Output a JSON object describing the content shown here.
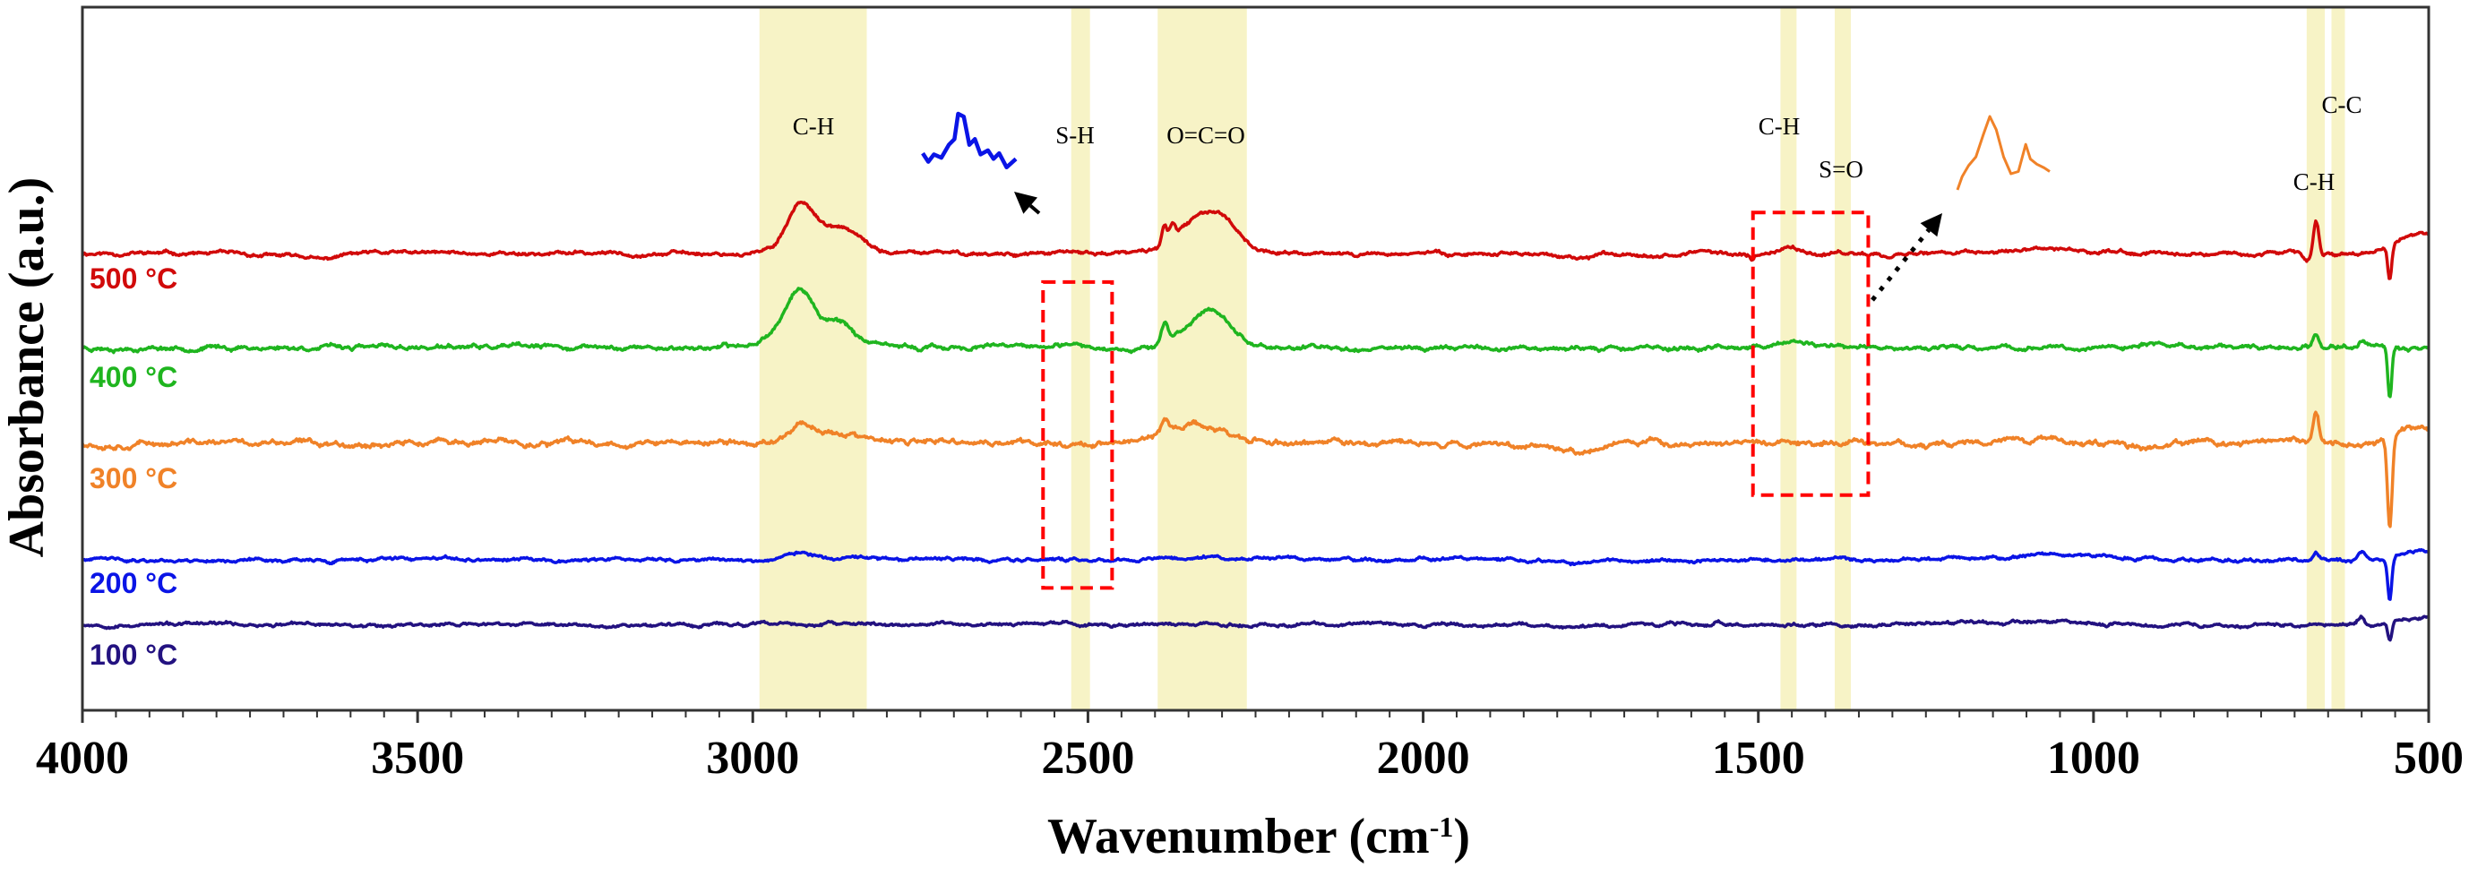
{
  "chart_data": {
    "type": "line",
    "title": "",
    "xlabel": "Wavenumber (cm",
    "xlabel_sup": "-1",
    "xlabel_close": ")",
    "ylabel": "Absorbance (a.u.)",
    "xlim": [
      4000,
      500
    ],
    "x_reversed": true,
    "ylim": [
      0,
      100
    ],
    "x_ticks": [
      4000,
      3500,
      3000,
      2500,
      2000,
      1500,
      1000,
      500
    ],
    "x_tick_labels": [
      "4000",
      "3500",
      "3000",
      "2500",
      "2000",
      "1500",
      "1000",
      "500"
    ],
    "x_minor_step": 50,
    "y_ticks_shown": false,
    "grid": false,
    "legend": "inline-left",
    "highlight_bands": [
      {
        "label": "C-H",
        "from": 2990,
        "to": 2830
      },
      {
        "label": "S-H",
        "from": 2525,
        "to": 2497
      },
      {
        "label": "O=C=O",
        "from": 2396,
        "to": 2263
      },
      {
        "label": "C-H",
        "from": 1467,
        "to": 1443
      },
      {
        "label": "S=O",
        "from": 1386,
        "to": 1362
      },
      {
        "label": "C-H",
        "from": 682,
        "to": 655
      },
      {
        "label": "C-C",
        "from": 645,
        "to": 625
      }
    ],
    "band_color": "#f7f3c6",
    "annotation_boxes": [
      {
        "name": "sh-region",
        "from": 2567,
        "to": 2464,
        "y_top": 60.9,
        "y_bottom": 17.4,
        "inset_series": "200 °C"
      },
      {
        "name": "ch-so-region",
        "from": 1508,
        "to": 1336,
        "y_top": 70.8,
        "y_bottom": 30.6,
        "inset_series": "300 °C"
      }
    ],
    "annotation_color": "#ff0000",
    "series": [
      {
        "name": "500 °C",
        "label": "500 °C",
        "color": "#d10a0a",
        "baseline": 65.0,
        "seed": 11,
        "noise": 0.18,
        "features": [
          {
            "x": 2927,
            "h": 7.1,
            "w": 22
          },
          {
            "x": 2866,
            "h": 3.4,
            "w": 26
          },
          {
            "x": 2305,
            "h": 5.0,
            "w": 30
          },
          {
            "x": 2350,
            "h": 2.6,
            "w": 30
          },
          {
            "x": 2386,
            "h": 2.6,
            "w": 4
          },
          {
            "x": 2374,
            "h": 1.8,
            "w": 4
          },
          {
            "x": 3640,
            "h": -0.7,
            "w": 15
          },
          {
            "x": 3700,
            "h": -0.4,
            "w": 60
          },
          {
            "x": 2100,
            "h": -0.5,
            "w": 6
          },
          {
            "x": 1770,
            "h": -0.9,
            "w": 25
          },
          {
            "x": 1510,
            "h": -0.7,
            "w": 3
          },
          {
            "x": 1455,
            "h": 0.7,
            "w": 12
          },
          {
            "x": 1050,
            "h": 0.4,
            "w": 80
          },
          {
            "x": 668,
            "h": 4.6,
            "w": 4
          },
          {
            "x": 682,
            "h": -1.0,
            "w": 6
          },
          {
            "x": 558,
            "h": -4.8,
            "w": 3
          },
          {
            "x": 510,
            "h": 2.6,
            "w": 35
          }
        ]
      },
      {
        "name": "400 °C",
        "label": "400 °C",
        "color": "#1fb51f",
        "baseline": 51.6,
        "seed": 23,
        "noise": 0.22,
        "features": [
          {
            "x": 2930,
            "h": 7.8,
            "w": 20
          },
          {
            "x": 2873,
            "h": 3.9,
            "w": 24
          },
          {
            "x": 2970,
            "h": 1.6,
            "w": 22
          },
          {
            "x": 2308,
            "h": 4.2,
            "w": 26
          },
          {
            "x": 2345,
            "h": 2.0,
            "w": 30
          },
          {
            "x": 2386,
            "h": 2.6,
            "w": 5
          },
          {
            "x": 1455,
            "h": 0.7,
            "w": 12
          },
          {
            "x": 1385,
            "h": 0.4,
            "w": 10
          },
          {
            "x": 900,
            "h": 0.6,
            "w": 25
          },
          {
            "x": 668,
            "h": 1.8,
            "w": 4
          },
          {
            "x": 600,
            "h": 1.1,
            "w": 5
          },
          {
            "x": 558,
            "h": -7.5,
            "w": 3
          }
        ]
      },
      {
        "name": "300 °C",
        "label": "300 °C",
        "color": "#f08228",
        "baseline": 38.0,
        "seed": 37,
        "noise": 0.28,
        "features": [
          {
            "x": 2927,
            "h": 2.8,
            "w": 20
          },
          {
            "x": 2870,
            "h": 1.4,
            "w": 28
          },
          {
            "x": 2340,
            "h": 2.6,
            "w": 45
          },
          {
            "x": 2385,
            "h": 1.5,
            "w": 5
          },
          {
            "x": 1770,
            "h": -1.1,
            "w": 30
          },
          {
            "x": 1100,
            "h": 0.8,
            "w": 40
          },
          {
            "x": 920,
            "h": -0.4,
            "w": 20
          },
          {
            "x": 668,
            "h": 4.1,
            "w": 4
          },
          {
            "x": 558,
            "h": -12.5,
            "w": 3.5
          },
          {
            "x": 510,
            "h": 2.2,
            "w": 30
          }
        ]
      },
      {
        "name": "200 °C",
        "label": "200 °C",
        "color": "#0a14e6",
        "baseline": 21.4,
        "seed": 41,
        "noise": 0.16,
        "features": [
          {
            "x": 2927,
            "h": 1.0,
            "w": 22
          },
          {
            "x": 2330,
            "h": 0.5,
            "w": 40
          },
          {
            "x": 3630,
            "h": -0.5,
            "w": 10
          },
          {
            "x": 1770,
            "h": -0.6,
            "w": 25
          },
          {
            "x": 1050,
            "h": 0.8,
            "w": 70
          },
          {
            "x": 668,
            "h": 1.1,
            "w": 4
          },
          {
            "x": 600,
            "h": 1.1,
            "w": 5
          },
          {
            "x": 558,
            "h": -6.0,
            "w": 3
          },
          {
            "x": 515,
            "h": 1.4,
            "w": 30
          }
        ]
      },
      {
        "name": "100 °C",
        "label": "100 °C",
        "color": "#231280",
        "baseline": 12.2,
        "seed": 53,
        "noise": 0.16,
        "features": [
          {
            "x": 1770,
            "h": -0.4,
            "w": 30
          },
          {
            "x": 1560,
            "h": 0.6,
            "w": 4
          },
          {
            "x": 1050,
            "h": 0.3,
            "w": 80
          },
          {
            "x": 600,
            "h": 1.3,
            "w": 5
          },
          {
            "x": 558,
            "h": -2.4,
            "w": 3
          },
          {
            "x": 510,
            "h": 1.0,
            "w": 25
          }
        ]
      }
    ],
    "insets": [
      {
        "name": "sh-inset",
        "series": "200 °C",
        "color": "#0a14e6",
        "points": [
          [
            0,
            0.3
          ],
          [
            0.06,
            0.15
          ],
          [
            0.12,
            0.28
          ],
          [
            0.2,
            0.22
          ],
          [
            0.28,
            0.45
          ],
          [
            0.34,
            0.55
          ],
          [
            0.38,
            1.0
          ],
          [
            0.44,
            0.95
          ],
          [
            0.5,
            0.45
          ],
          [
            0.56,
            0.55
          ],
          [
            0.62,
            0.28
          ],
          [
            0.7,
            0.35
          ],
          [
            0.76,
            0.2
          ],
          [
            0.82,
            0.3
          ],
          [
            0.9,
            0.05
          ],
          [
            1.0,
            0.2
          ]
        ]
      },
      {
        "name": "so-inset",
        "series": "300 °C",
        "color": "#f08228",
        "points": [
          [
            0,
            0.0
          ],
          [
            0.05,
            0.18
          ],
          [
            0.12,
            0.33
          ],
          [
            0.2,
            0.45
          ],
          [
            0.28,
            0.75
          ],
          [
            0.35,
            1.0
          ],
          [
            0.42,
            0.82
          ],
          [
            0.5,
            0.45
          ],
          [
            0.58,
            0.22
          ],
          [
            0.66,
            0.25
          ],
          [
            0.74,
            0.62
          ],
          [
            0.79,
            0.42
          ],
          [
            0.86,
            0.35
          ],
          [
            0.94,
            0.3
          ],
          [
            1.0,
            0.25
          ]
        ]
      }
    ],
    "arrows": [
      {
        "name": "sh-arrow",
        "style": "solid"
      },
      {
        "name": "so-arrow",
        "style": "dotted"
      }
    ]
  }
}
